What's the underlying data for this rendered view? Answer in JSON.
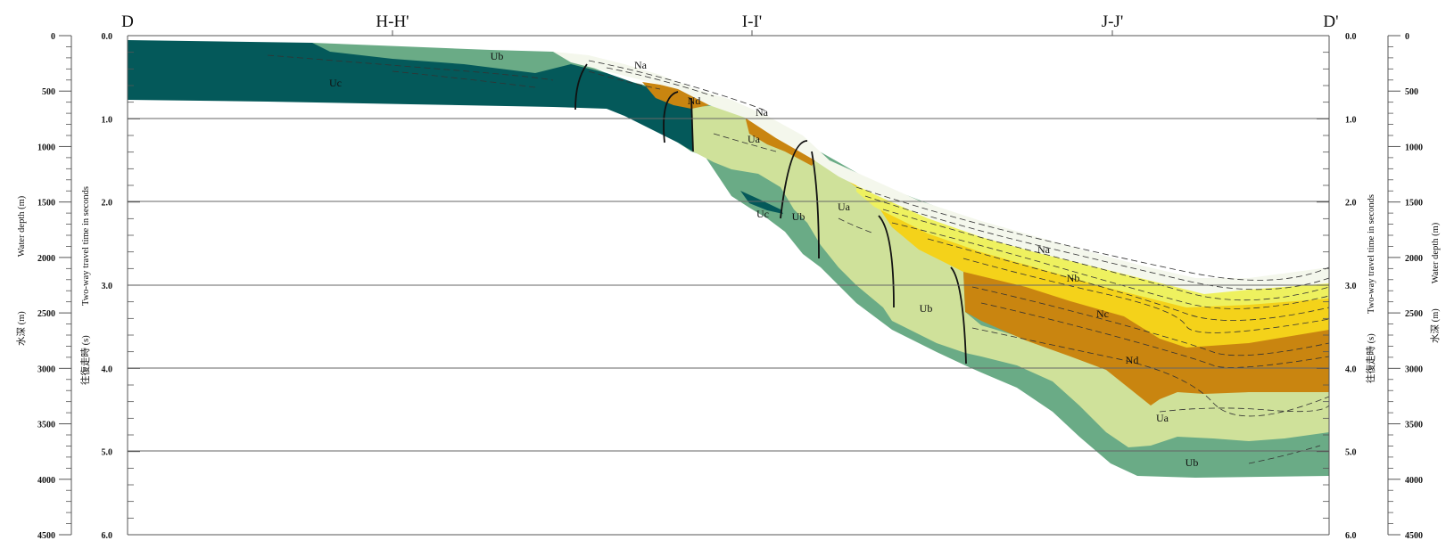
{
  "section_labels": {
    "start": "D",
    "hh": "H-H'",
    "ii": "I-I'",
    "jj": "J-J'",
    "end": "D'"
  },
  "left_axes": {
    "depth_label_ja": "水深 (m)",
    "depth_label_en": "Water depth (m)",
    "twt_label_ja": "往復走時 (s)",
    "twt_label_en": "Two-way travel time in seconds"
  },
  "right_axes": {
    "twt_label_ja": "往復走時 (s)",
    "twt_label_en": "Two-way travel time in seconds",
    "depth_label_ja": "水深 (m)",
    "depth_label_en": "Water depth (m)"
  },
  "twt_ticks": [
    "0.0",
    "1.0",
    "2.0",
    "3.0",
    "4.0",
    "5.0",
    "6.0"
  ],
  "depth_ticks": [
    "0",
    "500",
    "1000",
    "1500",
    "2000",
    "2500",
    "3000",
    "3500",
    "4000",
    "4500"
  ],
  "units": [
    {
      "id": "Na",
      "label": "Na",
      "color": "#f4f7ec"
    },
    {
      "id": "Nb",
      "label": "Nb",
      "color": "#eef15f"
    },
    {
      "id": "Nc",
      "label": "Nc",
      "color": "#f4d21a"
    },
    {
      "id": "Nd",
      "label": "Nd",
      "color": "#c98510"
    },
    {
      "id": "Ua",
      "label": "Ua",
      "color": "#cfe19a"
    },
    {
      "id": "Ub",
      "label": "Ub",
      "color": "#6aab86"
    },
    {
      "id": "Uc",
      "label": "Uc",
      "color": "#04595a"
    }
  ],
  "labels": {
    "uc_left": "Uc",
    "ub_left": "Ub",
    "na_upper": "Na",
    "nd_upper": "Nd",
    "na_mid": "Na",
    "ua_mid": "Ua",
    "uc_mid": "Uc",
    "ub_mid": "Ub",
    "ua_mid2": "Ua",
    "ub_lower": "Ub",
    "na_right": "Na",
    "nb_right": "Nb",
    "nc_right": "Nc",
    "nd_right": "Nd",
    "ua_right": "Ua",
    "ub_right": "Ub"
  }
}
